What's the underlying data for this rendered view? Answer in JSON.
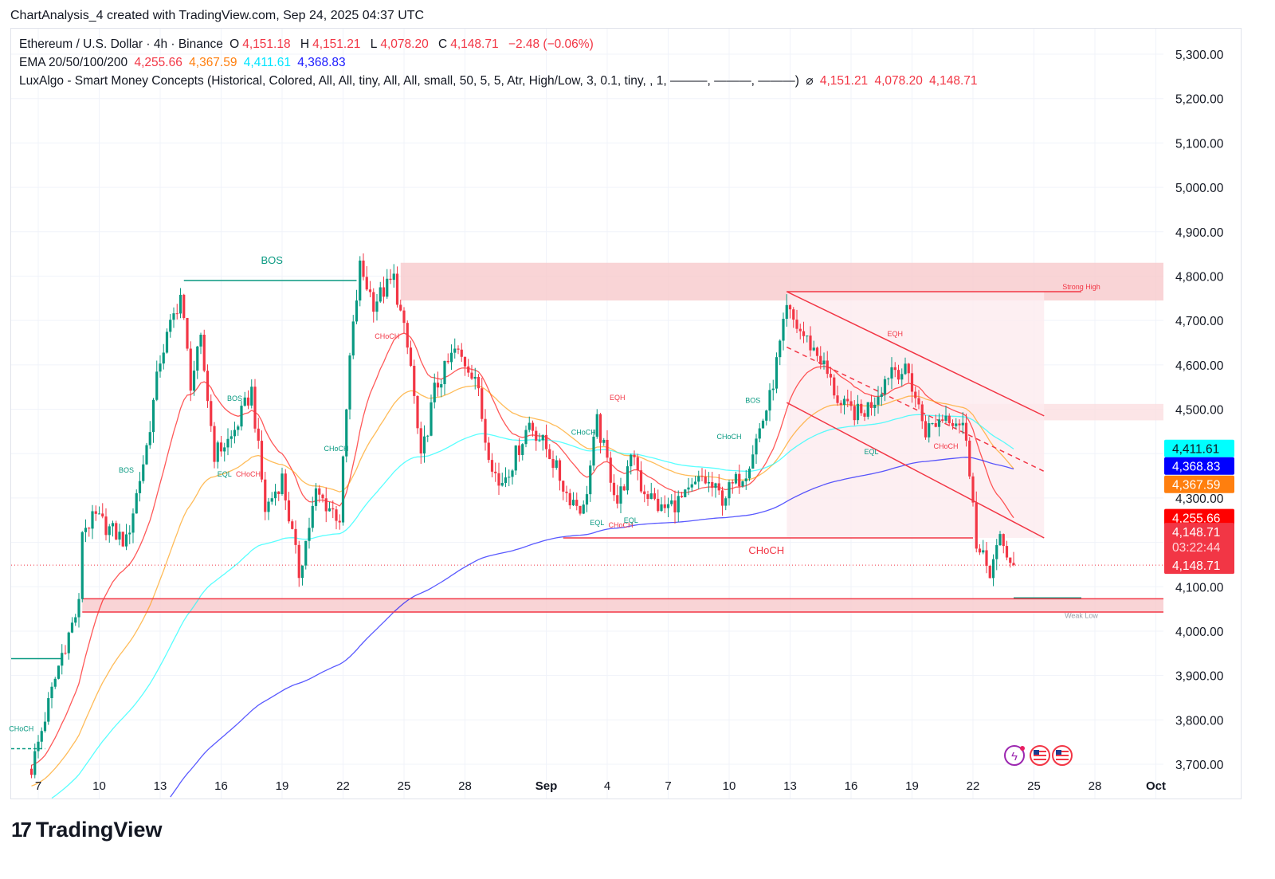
{
  "caption": "ChartAnalysis_4 created with TradingView.com, Sep 24, 2025 04:37 UTC",
  "legend": {
    "symbol": "Ethereum / U.S. Dollar · 4h · Binance",
    "o_label": "O",
    "o": "4,151.18",
    "h_label": "H",
    "h": "4,151.21",
    "l_label": "L",
    "l": "4,078.20",
    "c_label": "C",
    "c": "4,148.71",
    "change": "−2.48 (−0.06%)",
    "ema_title": "EMA 20/50/100/200",
    "ema20": "4,255.66",
    "ema50": "4,367.59",
    "ema100": "4,411.61",
    "ema200": "4,368.83",
    "smc_title": "LuxAlgo - Smart Money Concepts (Historical, Colored, All, All, tiny, All, All, small, 50, 5, 5, Atr, High/Low, 3, 0.1, tiny, , 1, ———, ———, ———)",
    "smc_symbol": "⌀",
    "smc_v1": "4,151.21",
    "smc_v2": "4,078.20",
    "smc_v3": "4,148.71"
  },
  "logo": "TradingView",
  "colors": {
    "up": "#089981",
    "down": "#f23645",
    "ema20": "#ff0000",
    "ema50": "#ff9800",
    "ema100": "#00ffff",
    "ema200": "#0000ff",
    "bos": "#089981",
    "choch_bear": "#f23645"
  },
  "chart_data": {
    "type": "candlestick",
    "symbol": "ETHUSD",
    "interval": "4h",
    "ylim": [
      3680,
      5330
    ],
    "y_ticks": [
      "5,300.00",
      "5,200.00",
      "5,100.00",
      "5,000.00",
      "4,900.00",
      "4,800.00",
      "4,700.00",
      "4,600.00",
      "4,500.00",
      "4,300.00",
      "4,100.00",
      "4,000.00",
      "3,900.00",
      "3,800.00",
      "3,700.00"
    ],
    "x_ticks": [
      {
        "t": "08-07 00",
        "label": "7"
      },
      {
        "t": "08-10 00",
        "label": "10"
      },
      {
        "t": "08-13 00",
        "label": "13"
      },
      {
        "t": "08-16 00",
        "label": "16"
      },
      {
        "t": "08-19 00",
        "label": "19"
      },
      {
        "t": "08-22 00",
        "label": "22"
      },
      {
        "t": "08-25 00",
        "label": "25"
      },
      {
        "t": "08-28 00",
        "label": "28"
      },
      {
        "t": "09-01 00",
        "label": "Sep"
      },
      {
        "t": "09-04 00",
        "label": "4"
      },
      {
        "t": "09-07 00",
        "label": "7"
      },
      {
        "t": "09-10 00",
        "label": "10"
      },
      {
        "t": "09-13 00",
        "label": "13"
      },
      {
        "t": "09-16 00",
        "label": "16"
      },
      {
        "t": "09-19 00",
        "label": "19"
      },
      {
        "t": "09-22 00",
        "label": "22"
      },
      {
        "t": "09-25 00",
        "label": "25"
      },
      {
        "t": "09-28 00",
        "label": "28"
      },
      {
        "t": "10-01 00",
        "label": "Oct"
      }
    ],
    "close_path": [
      [
        "08-06 16",
        3690
      ],
      [
        "08-07 08",
        3806
      ],
      [
        "08-08 04",
        3950
      ],
      [
        "08-09 00",
        4057
      ],
      [
        "08-09 04",
        4230
      ],
      [
        "08-09 20",
        4255
      ],
      [
        "08-11 08",
        4200
      ],
      [
        "08-12 08",
        4416
      ],
      [
        "08-13 00",
        4614
      ],
      [
        "08-14 00",
        4758
      ],
      [
        "08-14 12",
        4560
      ],
      [
        "08-15 00",
        4650
      ],
      [
        "08-15 16",
        4400
      ],
      [
        "08-16 12",
        4435
      ],
      [
        "08-17 12",
        4542
      ],
      [
        "08-18 04",
        4273
      ],
      [
        "08-19 00",
        4345
      ],
      [
        "08-19 20",
        4130
      ],
      [
        "08-20 16",
        4310
      ],
      [
        "08-21 20",
        4255
      ],
      [
        "08-22 08",
        4614
      ],
      [
        "08-22 20",
        4820
      ],
      [
        "08-23 12",
        4740
      ],
      [
        "08-24 12",
        4794
      ],
      [
        "08-25 08",
        4596
      ],
      [
        "08-25 20",
        4380
      ],
      [
        "08-26 12",
        4542
      ],
      [
        "08-27 12",
        4632
      ],
      [
        "08-28 12",
        4578
      ],
      [
        "08-29 00",
        4434
      ],
      [
        "08-29 16",
        4327
      ],
      [
        "08-30 08",
        4380
      ],
      [
        "08-31 04",
        4470
      ],
      [
        "09-01 04",
        4400
      ],
      [
        "09-02 00",
        4310
      ],
      [
        "09-02 20",
        4273
      ],
      [
        "09-03 12",
        4470
      ],
      [
        "09-04 12",
        4291
      ],
      [
        "09-05 08",
        4400
      ],
      [
        "09-05 16",
        4327
      ],
      [
        "09-06 16",
        4273
      ],
      [
        "09-07 20",
        4300
      ],
      [
        "09-08 16",
        4345
      ],
      [
        "09-09 16",
        4300
      ],
      [
        "09-10 20",
        4363
      ],
      [
        "09-12 00",
        4524
      ],
      [
        "09-12 20",
        4722
      ],
      [
        "09-13 08",
        4686
      ],
      [
        "09-14 12",
        4614
      ],
      [
        "09-15 12",
        4506
      ],
      [
        "09-16 12",
        4488
      ],
      [
        "09-17 04",
        4524
      ],
      [
        "09-18 00",
        4596
      ],
      [
        "09-18 20",
        4578
      ],
      [
        "09-19 16",
        4452
      ],
      [
        "09-20 16",
        4488
      ],
      [
        "09-21 12",
        4470
      ],
      [
        "09-22 00",
        4310
      ],
      [
        "09-22 04",
        4183
      ],
      [
        "09-22 20",
        4138
      ],
      [
        "09-23 08",
        4201
      ],
      [
        "09-24 00",
        4148.71
      ]
    ],
    "last_price": 4148.71,
    "countdown": "03:22:44",
    "price_tags": [
      {
        "label": "4,411.61",
        "value": 4411.61,
        "bg": "#00ffff",
        "fg": "#131722"
      },
      {
        "label": "4,368.83",
        "value": 4368.83,
        "bg": "#0000ff",
        "fg": "#ffffff"
      },
      {
        "label": "4,367.59",
        "value": 4367.59,
        "bg": "#ff7f0e",
        "fg": "#ffffff"
      },
      {
        "label": "4,255.66",
        "value": 4255.66,
        "bg": "#ff0000",
        "fg": "#ffffff"
      }
    ],
    "zones": [
      {
        "name": "strong-high-zone",
        "from": "08-24 20",
        "to": "end",
        "low": 4745,
        "high": 4830,
        "color": "#f8c9cc"
      },
      {
        "name": "weak-low-zone",
        "from": "08-09 04",
        "to": "end",
        "low": 4043,
        "high": 4073,
        "color": "#f8c9cc"
      },
      {
        "name": "bearish-ob-zone",
        "from": "09-21 12",
        "to": "end",
        "low": 4475,
        "high": 4512,
        "color": "#fbdfe1"
      },
      {
        "name": "channel-zone",
        "from": "09-12 20",
        "to": "09-25 12",
        "low": 4210,
        "high": 4765,
        "color": "#fdebef"
      }
    ],
    "levels": [
      {
        "name": "bos-line",
        "from": "08-14 04",
        "to": "08-22 16",
        "price": 4790,
        "color": "#089981"
      },
      {
        "name": "choch-line",
        "from": "09-01 20",
        "to": "09-22 00",
        "price": 4210,
        "color": "#f23645"
      },
      {
        "name": "strong-high-line",
        "from": "09-12 20",
        "to": "09-27 08",
        "price": 4765,
        "color": "#f23645"
      },
      {
        "name": "weak-low-line",
        "from": "09-24 00",
        "to": "09-27 08",
        "price": 4075,
        "color": "#089981"
      },
      {
        "name": "weak-low-bottom",
        "from": "08-09 04",
        "to": "end",
        "price": 4073,
        "color": "#f23645"
      },
      {
        "name": "weak-low-base",
        "from": "08-09 04",
        "to": "end",
        "price": 4043,
        "color": "#f23645"
      },
      {
        "name": "left-bos-line",
        "from": "08-05 16",
        "to": "08-08 04",
        "price": 3938,
        "color": "#089981"
      },
      {
        "name": "left-choch-line",
        "from": "08-05 16",
        "to": "08-07 08",
        "price": 3735,
        "color": "#089981",
        "dash": true
      }
    ],
    "trendlines": [
      {
        "name": "channel-upper",
        "from": [
          "09-12 20",
          4765
        ],
        "to": [
          "09-25 12",
          4485
        ],
        "color": "#f23645"
      },
      {
        "name": "channel-lower",
        "from": [
          "09-12 20",
          4515
        ],
        "to": [
          "09-25 12",
          4210
        ],
        "color": "#f23645"
      },
      {
        "name": "channel-mid",
        "from": [
          "09-12 20",
          4640
        ],
        "to": [
          "09-25 12",
          4360
        ],
        "color": "#f23645",
        "dash": true
      }
    ],
    "annotations": [
      {
        "text": "BOS",
        "t": "08-18 12",
        "price": 4828,
        "color": "#089981",
        "size": 13
      },
      {
        "text": "CHoCH",
        "t": "09-11 20",
        "price": 4174,
        "color": "#f23645",
        "size": 13
      },
      {
        "text": "Strong High",
        "t": "09-27 08",
        "price": 4770,
        "color": "#f23645",
        "size": 9
      },
      {
        "text": "Weak Low",
        "t": "09-27 08",
        "price": 4030,
        "color": "#9aa0aa",
        "size": 9
      },
      {
        "text": "BOS",
        "t": "08-11 08",
        "price": 4357,
        "color": "#089981",
        "size": 9
      },
      {
        "text": "BOS",
        "t": "08-16 16",
        "price": 4519,
        "color": "#089981",
        "size": 9
      },
      {
        "text": "EQL",
        "t": "08-16 04",
        "price": 4348,
        "color": "#089981",
        "size": 9
      },
      {
        "text": "CHoCH",
        "t": "08-17 08",
        "price": 4348,
        "color": "#f23645",
        "size": 9
      },
      {
        "text": "CHoCH",
        "t": "08-21 16",
        "price": 4406,
        "color": "#089981",
        "size": 9
      },
      {
        "text": "CHoCH",
        "t": "08-24 04",
        "price": 4659,
        "color": "#f23645",
        "size": 9
      },
      {
        "text": "EQH",
        "t": "09-04 12",
        "price": 4521,
        "color": "#f23645",
        "size": 9
      },
      {
        "text": "CHoCH",
        "t": "09-02 20",
        "price": 4443,
        "color": "#089981",
        "size": 9
      },
      {
        "text": "EQL",
        "t": "09-03 12",
        "price": 4239,
        "color": "#089981",
        "size": 9
      },
      {
        "text": "CHoCH",
        "t": "09-04 16",
        "price": 4233,
        "color": "#f23645",
        "size": 9
      },
      {
        "text": "EQL",
        "t": "09-05 04",
        "price": 4244,
        "color": "#089981",
        "size": 9
      },
      {
        "text": "BOS",
        "t": "09-11 04",
        "price": 4514,
        "color": "#089981",
        "size": 9
      },
      {
        "text": "CHoCH",
        "t": "09-10 00",
        "price": 4433,
        "color": "#089981",
        "size": 9
      },
      {
        "text": "EQH",
        "t": "09-18 04",
        "price": 4664,
        "color": "#f23645",
        "size": 9
      },
      {
        "text": "EQL",
        "t": "09-17 00",
        "price": 4399,
        "color": "#089981",
        "size": 9
      },
      {
        "text": "CHoCH",
        "t": "09-20 16",
        "price": 4411,
        "color": "#f23645",
        "size": 9
      },
      {
        "text": "CHoCH",
        "t": "08-06 04",
        "price": 3775,
        "color": "#089981",
        "size": 9
      }
    ]
  }
}
